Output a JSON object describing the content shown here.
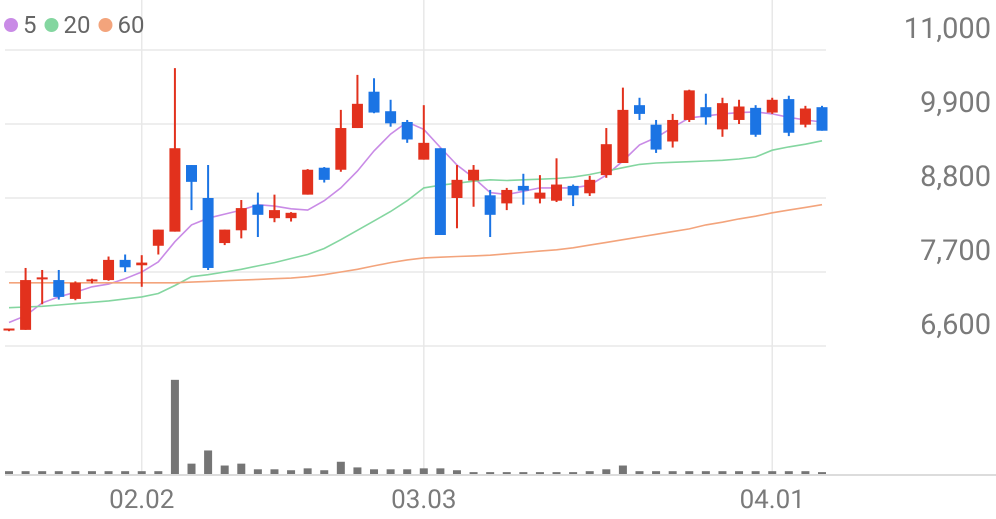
{
  "chart_data": {
    "type": "candlestick",
    "categories": [
      null,
      null,
      null,
      null,
      null,
      null,
      null,
      null,
      "02.02",
      null,
      null,
      null,
      null,
      null,
      null,
      null,
      null,
      null,
      null,
      null,
      null,
      null,
      null,
      null,
      null,
      "03.03",
      null,
      null,
      null,
      null,
      null,
      null,
      null,
      null,
      null,
      null,
      null,
      null,
      null,
      null,
      null,
      null,
      null,
      null,
      null,
      null,
      "04.01",
      null,
      null,
      null
    ],
    "open": [
      6830,
      6840,
      7590,
      7580,
      7300,
      7560,
      7580,
      7880,
      7800,
      8090,
      8300,
      9290,
      8800,
      8130,
      8320,
      8700,
      8500,
      8500,
      8850,
      9250,
      9220,
      9840,
      10380,
      10090,
      9930,
      9370,
      9540,
      8800,
      9060,
      8840,
      8720,
      8980,
      8790,
      8760,
      8980,
      8870,
      9140,
      9320,
      10180,
      9890,
      9640,
      9960,
      10150,
      9820,
      9960,
      10140,
      10070,
      10270,
      9890,
      10150
    ],
    "high": [
      6860,
      7760,
      7730,
      7730,
      7560,
      7600,
      7930,
      7960,
      7950,
      8330,
      10730,
      9290,
      9290,
      8330,
      8770,
      8880,
      8850,
      8590,
      9230,
      9260,
      10110,
      10630,
      10580,
      10260,
      9960,
      10180,
      9540,
      9290,
      9290,
      8920,
      8950,
      9160,
      9140,
      9390,
      9000,
      9130,
      9840,
      10440,
      10290,
      9960,
      10050,
      10410,
      10350,
      10290,
      10260,
      10180,
      10290,
      10320,
      10170,
      10170
    ],
    "low": [
      6820,
      6840,
      7220,
      7290,
      7280,
      7530,
      7570,
      7700,
      7480,
      7960,
      8300,
      8620,
      7730,
      8100,
      8200,
      8220,
      8440,
      8450,
      8850,
      9030,
      9190,
      9840,
      10060,
      9860,
      9620,
      9370,
      8250,
      8350,
      8670,
      8220,
      8620,
      8700,
      8720,
      8740,
      8680,
      8830,
      9100,
      9320,
      9960,
      9470,
      9550,
      9930,
      9890,
      9710,
      9900,
      9710,
      10050,
      9720,
      9850,
      9800
    ],
    "close": [
      6860,
      7580,
      7620,
      7330,
      7540,
      7590,
      7880,
      7770,
      7840,
      8330,
      9540,
      9040,
      7760,
      8330,
      8650,
      8550,
      8620,
      8580,
      9220,
      9070,
      9840,
      10200,
      10070,
      9910,
      9670,
      9620,
      8250,
      9070,
      9220,
      8550,
      8920,
      8910,
      8880,
      9000,
      8840,
      9070,
      9600,
      10110,
      10050,
      9520,
      9960,
      10400,
      10000,
      10210,
      10160,
      9740,
      10260,
      9770,
      10130,
      9800
    ],
    "up_color": "#e2311d",
    "down_color": "#1b74e4",
    "series": [
      {
        "name": "5",
        "color": "#c98be6",
        "values": [
          6950,
          7050,
          7240,
          7330,
          7400,
          7480,
          7520,
          7600,
          7700,
          7850,
          8150,
          8400,
          8500,
          8560,
          8620,
          8700,
          8680,
          8640,
          8620,
          8760,
          8950,
          9200,
          9500,
          9750,
          9930,
          9820,
          9550,
          9290,
          9100,
          8880,
          8850,
          8900,
          8950,
          8950,
          8950,
          8990,
          9140,
          9350,
          9590,
          9700,
          9850,
          9990,
          10020,
          10050,
          10070,
          10080,
          10050,
          10000,
          9960,
          9930
        ]
      },
      {
        "name": "20",
        "color": "#84d6a0",
        "values": [
          7170,
          7180,
          7190,
          7210,
          7230,
          7250,
          7270,
          7300,
          7330,
          7380,
          7500,
          7630,
          7660,
          7700,
          7740,
          7790,
          7840,
          7900,
          7960,
          8050,
          8180,
          8320,
          8460,
          8600,
          8760,
          8950,
          8990,
          9020,
          9050,
          9070,
          9060,
          9070,
          9080,
          9090,
          9110,
          9150,
          9200,
          9250,
          9300,
          9320,
          9330,
          9340,
          9350,
          9360,
          9380,
          9410,
          9510,
          9560,
          9600,
          9650
        ]
      },
      {
        "name": "60",
        "color": "#f3a47c",
        "values": [
          7540,
          7540,
          7540,
          7540,
          7540,
          7540,
          7540,
          7540,
          7540,
          7540,
          7540,
          7550,
          7560,
          7570,
          7580,
          7590,
          7600,
          7610,
          7630,
          7660,
          7700,
          7740,
          7790,
          7840,
          7880,
          7910,
          7920,
          7930,
          7940,
          7950,
          7970,
          7990,
          8010,
          8030,
          8060,
          8100,
          8140,
          8180,
          8220,
          8260,
          8300,
          8340,
          8400,
          8440,
          8490,
          8530,
          8580,
          8620,
          8660,
          8700
        ]
      }
    ],
    "ylim": [
      6600,
      11000
    ],
    "yticks": [
      {
        "value": 11000,
        "label": "11,000"
      },
      {
        "value": 9900,
        "label": "9,900"
      },
      {
        "value": 8800,
        "label": "8,800"
      },
      {
        "value": 7700,
        "label": "7,700"
      },
      {
        "value": 6600,
        "label": "6,600"
      }
    ],
    "volume": {
      "color": "#757575",
      "ylim": [
        0,
        120
      ],
      "values": [
        3,
        3,
        3,
        3,
        3,
        3,
        3,
        3,
        3,
        3,
        100,
        11,
        25,
        9,
        11,
        5,
        5,
        4,
        6,
        4,
        13,
        7,
        5,
        5,
        5,
        6,
        6,
        4,
        2,
        2,
        2,
        2,
        2,
        2,
        2,
        3,
        5,
        9,
        3,
        3,
        3,
        3,
        3,
        3,
        3,
        3,
        3,
        3,
        3,
        2
      ]
    },
    "grid": true
  }
}
